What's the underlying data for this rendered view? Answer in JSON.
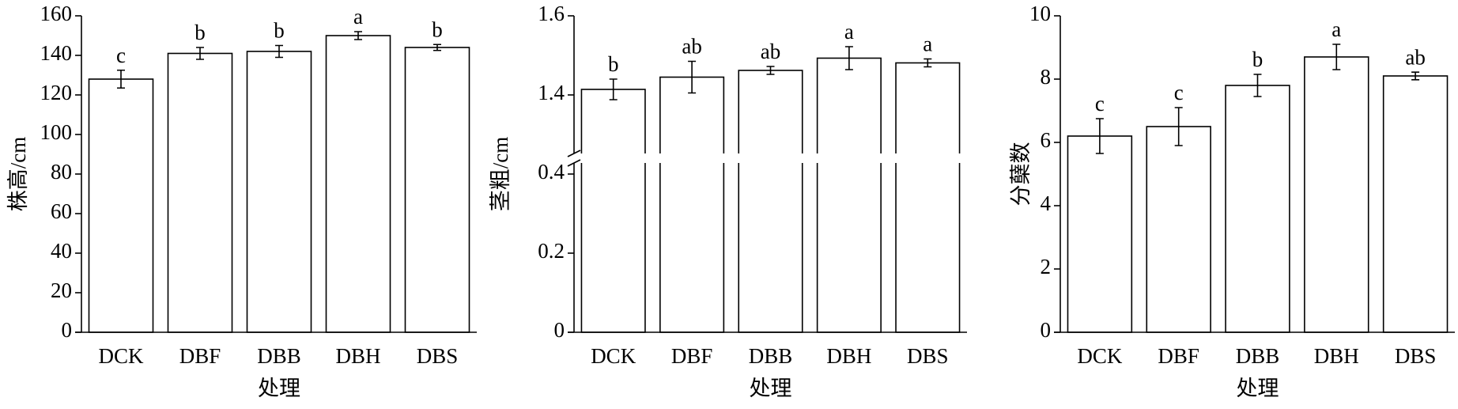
{
  "chart_data": [
    {
      "type": "bar",
      "y_label": "株高/cm",
      "x_label": "处理",
      "categories": [
        "DCK",
        "DBF",
        "DBB",
        "DBH",
        "DBS"
      ],
      "values": [
        128,
        141,
        142,
        150,
        144
      ],
      "errors": [
        4.5,
        3,
        3,
        2,
        1.5
      ],
      "annotations": [
        "c",
        "b",
        "b",
        "a",
        "b"
      ],
      "color": "#ffffff",
      "ylim": [
        0,
        160
      ],
      "yticks": [
        0,
        20,
        40,
        60,
        80,
        100,
        120,
        140,
        160
      ]
    },
    {
      "type": "bar",
      "y_label": "茎粗/cm",
      "x_label": "处理",
      "categories": [
        "DCK",
        "DBF",
        "DBB",
        "DBH",
        "DBS"
      ],
      "values": [
        1.414,
        1.445,
        1.462,
        1.493,
        1.481
      ],
      "errors": [
        0.026,
        0.04,
        0.01,
        0.029,
        0.01
      ],
      "annotations": [
        "b",
        "ab",
        "ab",
        "a",
        "a"
      ],
      "color": "#ffffff",
      "ylim": [
        0,
        1.6
      ],
      "y_break": [
        0.44,
        1.24
      ],
      "yticks": [
        0,
        0.2,
        0.4,
        1.4,
        1.6
      ]
    },
    {
      "type": "bar",
      "y_label": "分蘖数",
      "x_label": "处理",
      "categories": [
        "DCK",
        "DBF",
        "DBB",
        "DBH",
        "DBS"
      ],
      "values": [
        6.2,
        6.5,
        7.8,
        8.7,
        8.1
      ],
      "errors": [
        0.55,
        0.6,
        0.35,
        0.4,
        0.12
      ],
      "annotations": [
        "c",
        "c",
        "b",
        "a",
        "ab"
      ],
      "color": "#ffffff",
      "ylim": [
        0,
        10
      ],
      "yticks": [
        0,
        2,
        4,
        6,
        8,
        10
      ]
    }
  ]
}
